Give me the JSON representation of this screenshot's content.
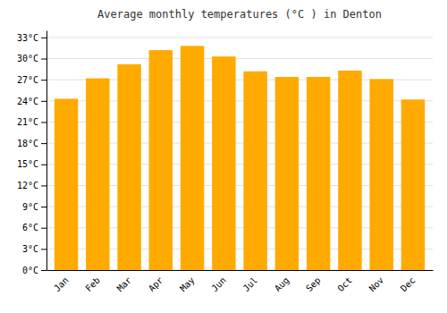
{
  "chart_data": {
    "type": "bar",
    "title": "Average monthly temperatures (°C ) in Denton",
    "categories": [
      "Jan",
      "Feb",
      "Mar",
      "Apr",
      "May",
      "Jun",
      "Jul",
      "Aug",
      "Sep",
      "Oct",
      "Nov",
      "Dec"
    ],
    "values": [
      24.3,
      27.2,
      29.2,
      31.2,
      31.8,
      30.3,
      28.2,
      27.4,
      27.4,
      28.3,
      27.1,
      24.2
    ],
    "color": "#FFAA00",
    "ylim": [
      0,
      34
    ],
    "yticks": [
      {
        "value": 0,
        "label": "0°C"
      },
      {
        "value": 3,
        "label": "3°C"
      },
      {
        "value": 6,
        "label": "6°C"
      },
      {
        "value": 9,
        "label": "9°C"
      },
      {
        "value": 12,
        "label": "12°C"
      },
      {
        "value": 15,
        "label": "15°C"
      },
      {
        "value": 18,
        "label": "18°C"
      },
      {
        "value": 21,
        "label": "21°C"
      },
      {
        "value": 24,
        "label": "24°C"
      },
      {
        "value": 27,
        "label": "27°C"
      },
      {
        "value": 30,
        "label": "30°C"
      },
      {
        "value": 33,
        "label": "33°C"
      }
    ],
    "grid": true
  }
}
